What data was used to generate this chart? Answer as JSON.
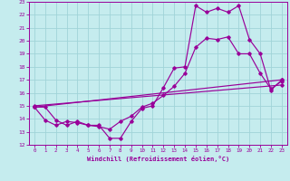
{
  "xlabel": "Windchill (Refroidissement éolien,°C)",
  "bg_color": "#c5ecee",
  "grid_color": "#a0d4d8",
  "line_color": "#990099",
  "xlim": [
    -0.5,
    23.5
  ],
  "ylim": [
    12,
    23
  ],
  "xticks": [
    0,
    1,
    2,
    3,
    4,
    5,
    6,
    7,
    8,
    9,
    10,
    11,
    12,
    13,
    14,
    15,
    16,
    17,
    18,
    19,
    20,
    21,
    22,
    23
  ],
  "yticks": [
    12,
    13,
    14,
    15,
    16,
    17,
    18,
    19,
    20,
    21,
    22,
    23
  ],
  "line1_x": [
    0,
    1,
    2,
    3,
    4,
    5,
    6,
    7,
    8,
    9,
    10,
    11,
    12,
    13,
    14,
    15,
    16,
    17,
    18,
    19,
    20,
    21,
    22,
    23
  ],
  "line1_y": [
    14.9,
    14.9,
    13.9,
    13.5,
    13.8,
    13.5,
    13.5,
    12.5,
    12.5,
    13.8,
    14.8,
    15.0,
    16.4,
    17.9,
    18.0,
    22.7,
    22.2,
    22.5,
    22.2,
    22.7,
    20.1,
    19.0,
    16.2,
    17.0
  ],
  "line2_x": [
    0,
    23
  ],
  "line2_y": [
    14.9,
    17.0
  ],
  "line3_x": [
    0,
    23
  ],
  "line3_y": [
    15.0,
    16.6
  ],
  "line4_x": [
    0,
    1,
    2,
    3,
    4,
    5,
    6,
    7,
    8,
    9,
    10,
    11,
    12,
    13,
    14,
    15,
    16,
    17,
    18,
    19,
    20,
    21,
    22,
    23
  ],
  "line4_y": [
    14.9,
    13.9,
    13.5,
    13.8,
    13.7,
    13.5,
    13.4,
    13.2,
    13.8,
    14.2,
    14.9,
    15.2,
    15.8,
    16.5,
    17.5,
    19.5,
    20.2,
    20.1,
    20.3,
    19.0,
    19.0,
    17.5,
    16.3,
    16.9
  ]
}
